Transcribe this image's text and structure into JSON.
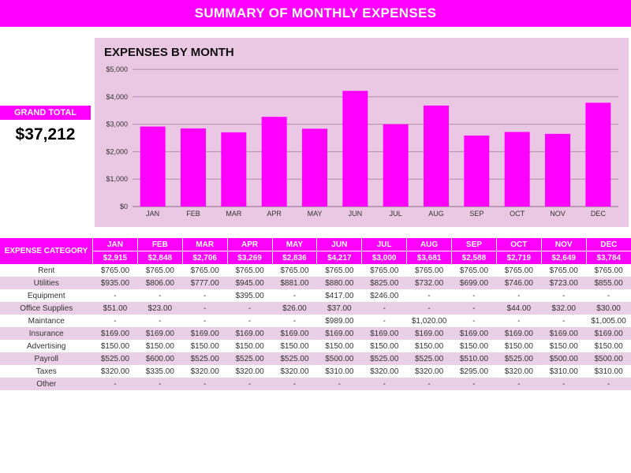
{
  "header": {
    "title": "SUMMARY OF MONTHLY EXPENSES"
  },
  "grand_total": {
    "label": "GRAND TOTAL",
    "value": "$37,212"
  },
  "chart_data": {
    "type": "bar",
    "title": "EXPENSES BY MONTH",
    "xlabel": "",
    "ylabel": "",
    "categories": [
      "JAN",
      "FEB",
      "MAR",
      "APR",
      "MAY",
      "JUN",
      "JUL",
      "AUG",
      "SEP",
      "OCT",
      "NOV",
      "DEC"
    ],
    "values": [
      2915,
      2848,
      2706,
      3269,
      2836,
      4217,
      3000,
      3681,
      2588,
      2719,
      2649,
      3784
    ],
    "ylim": [
      0,
      5000
    ],
    "yticks": [
      0,
      1000,
      2000,
      3000,
      4000,
      5000
    ],
    "ytick_labels": [
      "$0",
      "$1,000",
      "$2,000",
      "$3,000",
      "$4,000",
      "$5,000"
    ],
    "grid": true,
    "colors": {
      "bar": "#ff00ff",
      "background": "#eac8e3",
      "grid": "#b58aae"
    }
  },
  "table": {
    "category_header": "EXPENSE CATEGORY",
    "months": [
      "JAN",
      "FEB",
      "MAR",
      "APR",
      "MAY",
      "JUN",
      "JUL",
      "AUG",
      "SEP",
      "OCT",
      "NOV",
      "DEC"
    ],
    "totals": [
      "$2,915",
      "$2,848",
      "$2,706",
      "$3,269",
      "$2,836",
      "$4,217",
      "$3,000",
      "$3,681",
      "$2,588",
      "$2,719",
      "$2,649",
      "$3,784"
    ],
    "rows": [
      {
        "category": "Rent",
        "values": [
          "$765.00",
          "$765.00",
          "$765.00",
          "$765.00",
          "$765.00",
          "$765.00",
          "$765.00",
          "$765.00",
          "$765.00",
          "$765.00",
          "$765.00",
          "$765.00"
        ]
      },
      {
        "category": "Utilities",
        "values": [
          "$935.00",
          "$806.00",
          "$777.00",
          "$945.00",
          "$881.00",
          "$880.00",
          "$825.00",
          "$732.00",
          "$699.00",
          "$746.00",
          "$723.00",
          "$855.00"
        ]
      },
      {
        "category": "Equipment",
        "values": [
          "-",
          "-",
          "-",
          "$395.00",
          "-",
          "$417.00",
          "$246.00",
          "-",
          "-",
          "-",
          "-",
          "-"
        ]
      },
      {
        "category": "Office Supplies",
        "values": [
          "$51.00",
          "$23.00",
          "-",
          "-",
          "$26.00",
          "$37.00",
          "-",
          "-",
          "-",
          "$44.00",
          "$32.00",
          "$30.00"
        ]
      },
      {
        "category": "Maintance",
        "values": [
          "-",
          "-",
          "-",
          "-",
          "-",
          "$989.00",
          "-",
          "$1,020.00",
          "-",
          "-",
          "-",
          "$1,005.00"
        ]
      },
      {
        "category": "Insurance",
        "values": [
          "$169.00",
          "$169.00",
          "$169.00",
          "$169.00",
          "$169.00",
          "$169.00",
          "$169.00",
          "$169.00",
          "$169.00",
          "$169.00",
          "$169.00",
          "$169.00"
        ]
      },
      {
        "category": "Advertising",
        "values": [
          "$150.00",
          "$150.00",
          "$150.00",
          "$150.00",
          "$150.00",
          "$150.00",
          "$150.00",
          "$150.00",
          "$150.00",
          "$150.00",
          "$150.00",
          "$150.00"
        ]
      },
      {
        "category": "Payroll",
        "values": [
          "$525.00",
          "$600.00",
          "$525.00",
          "$525.00",
          "$525.00",
          "$500.00",
          "$525.00",
          "$525.00",
          "$510.00",
          "$525.00",
          "$500.00",
          "$500.00"
        ]
      },
      {
        "category": "Taxes",
        "values": [
          "$320.00",
          "$335.00",
          "$320.00",
          "$320.00",
          "$320.00",
          "$310.00",
          "$320.00",
          "$320.00",
          "$295.00",
          "$320.00",
          "$310.00",
          "$310.00"
        ]
      },
      {
        "category": "Other",
        "values": [
          "-",
          "-",
          "-",
          "-",
          "-",
          "-",
          "-",
          "-",
          "-",
          "-",
          "-",
          "-"
        ]
      }
    ]
  }
}
